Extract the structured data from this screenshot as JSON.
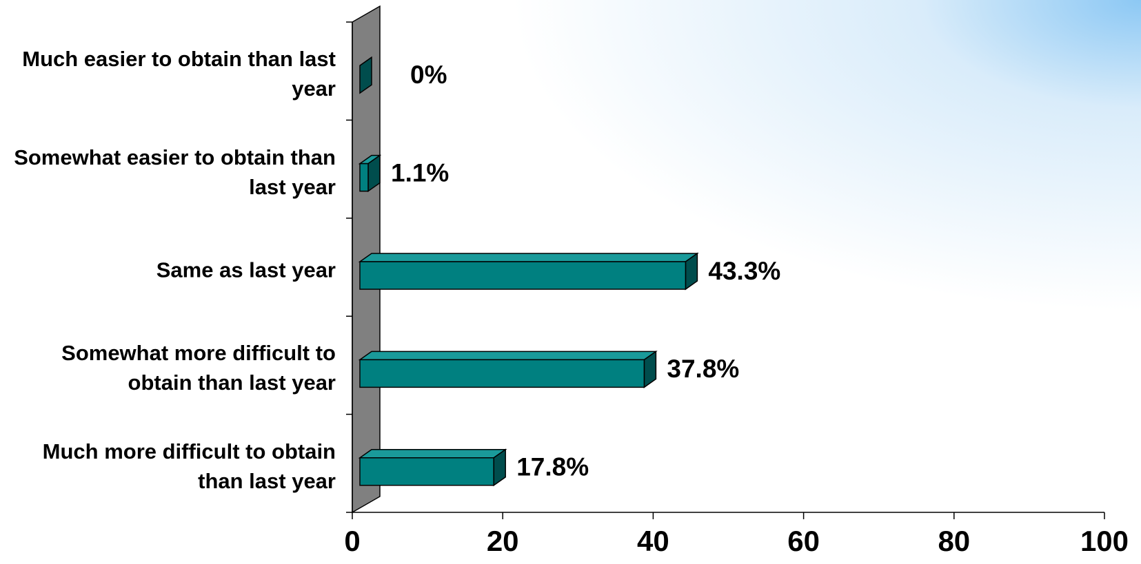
{
  "chart_data": {
    "type": "bar",
    "orientation": "horizontal",
    "categories": [
      "Much easier to obtain than last year",
      "Somewhat easier to obtain than last year",
      "Same as last year",
      "Somewhat more difficult to obtain than last year",
      "Much more difficult to obtain than last year"
    ],
    "values": [
      0,
      1.1,
      43.3,
      37.8,
      17.8
    ],
    "value_labels": [
      "0%",
      "1.1%",
      "43.3%",
      "37.8%",
      "17.8%"
    ],
    "color": "#008080",
    "xlim": [
      0,
      100
    ],
    "xticks": [
      0,
      20,
      40,
      60,
      80,
      100
    ]
  }
}
